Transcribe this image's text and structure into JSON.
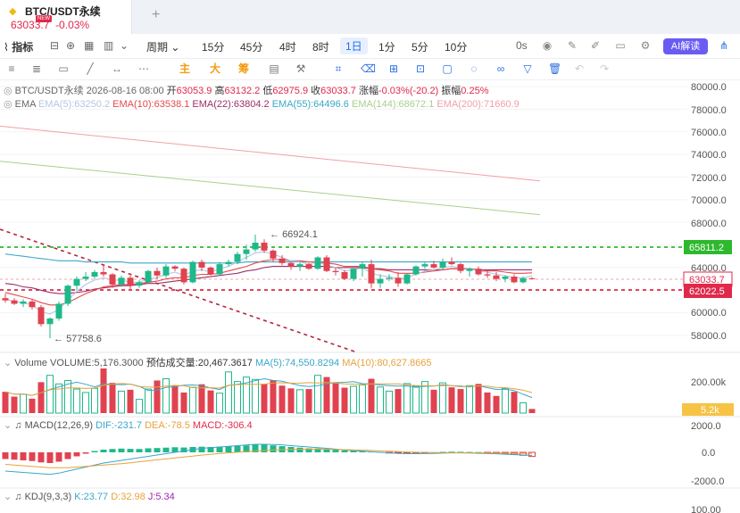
{
  "tab": {
    "name": "BTC/USDT永续",
    "price": "63033.7",
    "change": "-0.03%",
    "badge": "NEW",
    "add": "+"
  },
  "toolbar": {
    "indicators": "指标",
    "period": "周期",
    "intervals": [
      "15分",
      "45分",
      "4时",
      "8时",
      "1日",
      "1分",
      "5分",
      "10分"
    ],
    "active": "1日",
    "seconds": "0s",
    "ai": "AI解读"
  },
  "drawbar": {
    "main": "主",
    "big": "大",
    "chip": "筹"
  },
  "legend": {
    "symbol_line": "BTC/USDT永续  2026-08-16 08:00",
    "open_l": "开",
    "open": "63053.9",
    "high_l": "高",
    "high": "63132.2",
    "low_l": "低",
    "low": "62975.9",
    "close_l": "收",
    "close": "63033.7",
    "chg_l": "涨幅",
    "chg": "-0.03%(-20.2)",
    "amp_l": "振幅",
    "amp": "0.25%",
    "ema": "EMA",
    "ema5": "EMA(5):63250.2",
    "ema10": "EMA(10):63538.1",
    "ema22": "EMA(22):63804.2",
    "ema55": "EMA(55):64496.6",
    "ema144": "EMA(144):68672.1",
    "ema200": "EMA(200):71660.9",
    "volume": "Volume",
    "vol_value": "VOLUME:5,176.3000",
    "vol_est": "预估成交量:20,467.3617",
    "vol_ma5": "MA(5):74,550.8294",
    "vol_ma10": "MA(10):80,627.8665",
    "macd": "MACD(12,26,9)",
    "dif": "DIF:-231.7",
    "dea": "DEA:-78.5",
    "macd_v": "MACD:-306.4",
    "kdj": "KDJ(9,3,3)",
    "k": "K:23.77",
    "d": "D:32.98",
    "j": "J:5.34"
  },
  "annotations": {
    "high": "66924.1",
    "low": "57758.6"
  },
  "price_axis": [
    "80000.0",
    "78000.0",
    "76000.0",
    "74000.0",
    "72000.0",
    "70000.0",
    "68000.0",
    "64000.0",
    "60000.0",
    "58000.0"
  ],
  "price_tags": {
    "line1": "65811.2",
    "current": "63033.7",
    "line2": "62022.5"
  },
  "vol_axis": [
    "200.00k",
    "5.2k"
  ],
  "macd_axis": [
    "2000.0",
    "0.0",
    "-2000.0"
  ],
  "kdj_axis": [
    "100.00"
  ],
  "colors": {
    "up": "#1fb88a",
    "down": "#e0424f",
    "ema5": "#b4c6e7",
    "ema10": "#e64a4a",
    "ema22": "#9c2f6a",
    "ema55": "#3aa7c9",
    "ema144": "#a8d08d",
    "ema200": "#f0a0a8",
    "accent": "#1f6cf0"
  },
  "chart_data": {
    "type": "candlestick",
    "candles": [
      [
        61300,
        61700,
        60900,
        61100
      ],
      [
        61100,
        61300,
        60700,
        60800
      ],
      [
        60800,
        61200,
        60500,
        61000
      ],
      [
        61000,
        61200,
        60300,
        60500
      ],
      [
        60500,
        60700,
        58800,
        59000
      ],
      [
        59000,
        59600,
        57758.6,
        59500
      ],
      [
        59500,
        61000,
        59300,
        60800
      ],
      [
        60800,
        62500,
        60600,
        62400
      ],
      [
        62400,
        63200,
        62000,
        63000
      ],
      [
        63000,
        63600,
        62800,
        63200
      ],
      [
        63200,
        63800,
        63000,
        63600
      ],
      [
        63600,
        64200,
        63200,
        63400
      ],
      [
        63400,
        63500,
        62200,
        62500
      ],
      [
        62500,
        63300,
        62300,
        63100
      ],
      [
        63100,
        63300,
        62000,
        62400
      ],
      [
        62400,
        62900,
        62200,
        62700
      ],
      [
        62700,
        63800,
        62600,
        63700
      ],
      [
        63700,
        64000,
        63000,
        63300
      ],
      [
        63300,
        64300,
        63100,
        64100
      ],
      [
        64100,
        64200,
        63700,
        63900
      ],
      [
        63900,
        64000,
        62500,
        62700
      ],
      [
        62700,
        64600,
        62600,
        64500
      ],
      [
        64500,
        64700,
        63700,
        64000
      ],
      [
        64000,
        64100,
        63300,
        63400
      ],
      [
        63400,
        64500,
        63300,
        64300
      ],
      [
        64300,
        64700,
        64100,
        64500
      ],
      [
        64500,
        65400,
        64300,
        65200
      ],
      [
        65200,
        66000,
        64700,
        65600
      ],
      [
        65600,
        66924.1,
        65400,
        66200
      ],
      [
        66200,
        66500,
        65300,
        65500
      ],
      [
        65500,
        65600,
        64500,
        64800
      ],
      [
        64800,
        65100,
        64200,
        64400
      ],
      [
        64400,
        64500,
        63800,
        64100
      ],
      [
        64100,
        64500,
        63700,
        64300
      ],
      [
        64300,
        64400,
        63800,
        63900
      ],
      [
        63900,
        65000,
        63800,
        64900
      ],
      [
        64900,
        65100,
        63600,
        63700
      ],
      [
        63700,
        64000,
        63300,
        63600
      ],
      [
        63600,
        63800,
        62900,
        63000
      ],
      [
        63000,
        64000,
        62800,
        63900
      ],
      [
        63900,
        64500,
        63200,
        64300
      ],
      [
        64300,
        64700,
        62200,
        62600
      ],
      [
        62600,
        63400,
        62200,
        63000
      ],
      [
        63000,
        63400,
        62800,
        63100
      ],
      [
        63100,
        63600,
        62300,
        62600
      ],
      [
        62600,
        63500,
        62500,
        63400
      ],
      [
        63400,
        64200,
        63300,
        64100
      ],
      [
        64100,
        64500,
        63900,
        64300
      ],
      [
        64300,
        64600,
        63900,
        64000
      ],
      [
        64000,
        64800,
        63800,
        64500
      ],
      [
        64500,
        64900,
        64200,
        64300
      ],
      [
        64300,
        64400,
        63500,
        63700
      ],
      [
        63700,
        64000,
        63200,
        63900
      ],
      [
        63900,
        64100,
        63300,
        63400
      ],
      [
        63400,
        63800,
        63100,
        63300
      ],
      [
        63300,
        63600,
        62800,
        63000
      ],
      [
        63000,
        63300,
        62700,
        63200
      ],
      [
        63200,
        63400,
        62600,
        62700
      ],
      [
        62700,
        63200,
        62600,
        63053.9
      ],
      [
        63053.9,
        63132.2,
        62975.9,
        63033.7
      ]
    ],
    "volumes": [
      62,
      48,
      55,
      42,
      90,
      110,
      85,
      95,
      70,
      60,
      72,
      130,
      88,
      64,
      68,
      40,
      70,
      95,
      100,
      80,
      60,
      75,
      84,
      66,
      58,
      120,
      92,
      105,
      98,
      85,
      96,
      80,
      72,
      68,
      70,
      110,
      105,
      90,
      74,
      78,
      82,
      100,
      76,
      64,
      70,
      86,
      78,
      92,
      68,
      88,
      75,
      70,
      80,
      85,
      60,
      50,
      72,
      62,
      30,
      12
    ],
    "ema5": [
      61200,
      61000,
      60900,
      60700,
      60100,
      59900,
      60300,
      61100,
      61900,
      62500,
      62900,
      63100,
      62900,
      62900,
      62700,
      62700,
      63000,
      63100,
      63400,
      63600,
      63300,
      63700,
      63800,
      63600,
      63900,
      64100,
      64500,
      64900,
      65300,
      65400,
      65200,
      64900,
      64600,
      64500,
      64300,
      64500,
      64200,
      64000,
      63700,
      63800,
      64000,
      63500,
      63300,
      63200,
      63000,
      63100,
      63400,
      63700,
      63800,
      64000,
      64100,
      64000,
      63900,
      63700,
      63600,
      63400,
      63300,
      63100,
      63100,
      63250.2
    ],
    "ema10": [
      61800,
      61600,
      61400,
      61200,
      60900,
      60700,
      60700,
      60900,
      61300,
      61700,
      62000,
      62300,
      62400,
      62500,
      62500,
      62600,
      62700,
      62800,
      63000,
      63100,
      63100,
      63300,
      63400,
      63400,
      63500,
      63700,
      63900,
      64100,
      64400,
      64600,
      64700,
      64700,
      64600,
      64600,
      64500,
      64500,
      64400,
      64300,
      64100,
      64100,
      64100,
      63900,
      63800,
      63700,
      63500,
      63500,
      63500,
      63600,
      63700,
      63800,
      63900,
      63900,
      63900,
      63800,
      63700,
      63700,
      63600,
      63500,
      63500,
      63538.1
    ],
    "ema22": [
      62600,
      62500,
      62300,
      62200,
      62000,
      61800,
      61700,
      61700,
      61800,
      61900,
      62100,
      62200,
      62300,
      62400,
      62400,
      62500,
      62600,
      62600,
      62700,
      62800,
      62900,
      63000,
      63100,
      63200,
      63300,
      63400,
      63500,
      63700,
      63800,
      64000,
      64100,
      64100,
      64100,
      64100,
      64100,
      64100,
      64100,
      64000,
      64000,
      64000,
      64000,
      63900,
      63900,
      63800,
      63800,
      63800,
      63800,
      63800,
      63800,
      63800,
      63900,
      63900,
      63900,
      63800,
      63800,
      63800,
      63800,
      63800,
      63800,
      63804.2
    ],
    "ema55": [
      65200,
      65100,
      65000,
      64900,
      64800,
      64700,
      64600,
      64600,
      64600,
      64500,
      64500,
      64500,
      64500,
      64500,
      64400,
      64400,
      64400,
      64400,
      64400,
      64400,
      64400,
      64400,
      64400,
      64400,
      64400,
      64400,
      64400,
      64500,
      64500,
      64500,
      64500,
      64500,
      64500,
      64500,
      64500,
      64500,
      64500,
      64500,
      64500,
      64500,
      64500,
      64500,
      64500,
      64500,
      64500,
      64500,
      64500,
      64500,
      64500,
      64500,
      64500,
      64500,
      64500,
      64500,
      64500,
      64500,
      64500,
      64500,
      64500,
      64496.6
    ],
    "ema144": [
      73400,
      68672.1
    ],
    "ema200": [
      76500,
      71660.9
    ],
    "macd_hist": [
      -500,
      -550,
      -600,
      -650,
      -750,
      -800,
      -700,
      -500,
      -300,
      -100,
      100,
      200,
      250,
      280,
      260,
      250,
      300,
      320,
      350,
      380,
      360,
      400,
      420,
      400,
      420,
      440,
      480,
      520,
      600,
      580,
      520,
      460,
      400,
      350,
      300,
      290,
      240,
      200,
      150,
      120,
      110,
      60,
      20,
      -10,
      -40,
      -60,
      -50,
      -20,
      10,
      40,
      50,
      40,
      30,
      20,
      -10,
      -40,
      -90,
      -150,
      -220,
      -306.4
    ],
    "macd_dif": [
      -1400,
      -1450,
      -1500,
      -1550,
      -1600,
      -1650,
      -1550,
      -1400,
      -1250,
      -1100,
      -950,
      -800,
      -700,
      -600,
      -500,
      -400,
      -300,
      -200,
      -100,
      0,
      100,
      200,
      300,
      350,
      400,
      450,
      500,
      550,
      600,
      600,
      580,
      560,
      500,
      450,
      400,
      350,
      300,
      240,
      180,
      120,
      80,
      40,
      0,
      -40,
      -80,
      -100,
      -100,
      -90,
      -80,
      -60,
      -40,
      -40,
      -50,
      -70,
      -90,
      -110,
      -140,
      -170,
      -200,
      -231.7
    ],
    "macd_dea": [
      -900,
      -950,
      -1000,
      -1050,
      -1100,
      -1150,
      -1150,
      -1150,
      -1100,
      -1050,
      -1000,
      -950,
      -900,
      -850,
      -780,
      -700,
      -630,
      -560,
      -490,
      -420,
      -350,
      -280,
      -210,
      -150,
      -90,
      -40,
      10,
      60,
      100,
      140,
      170,
      200,
      220,
      230,
      240,
      240,
      230,
      220,
      200,
      180,
      160,
      140,
      110,
      80,
      50,
      30,
      10,
      -5,
      -15,
      -25,
      -30,
      -35,
      -40,
      -45,
      -50,
      -55,
      -60,
      -66,
      -72,
      -78.5
    ]
  }
}
